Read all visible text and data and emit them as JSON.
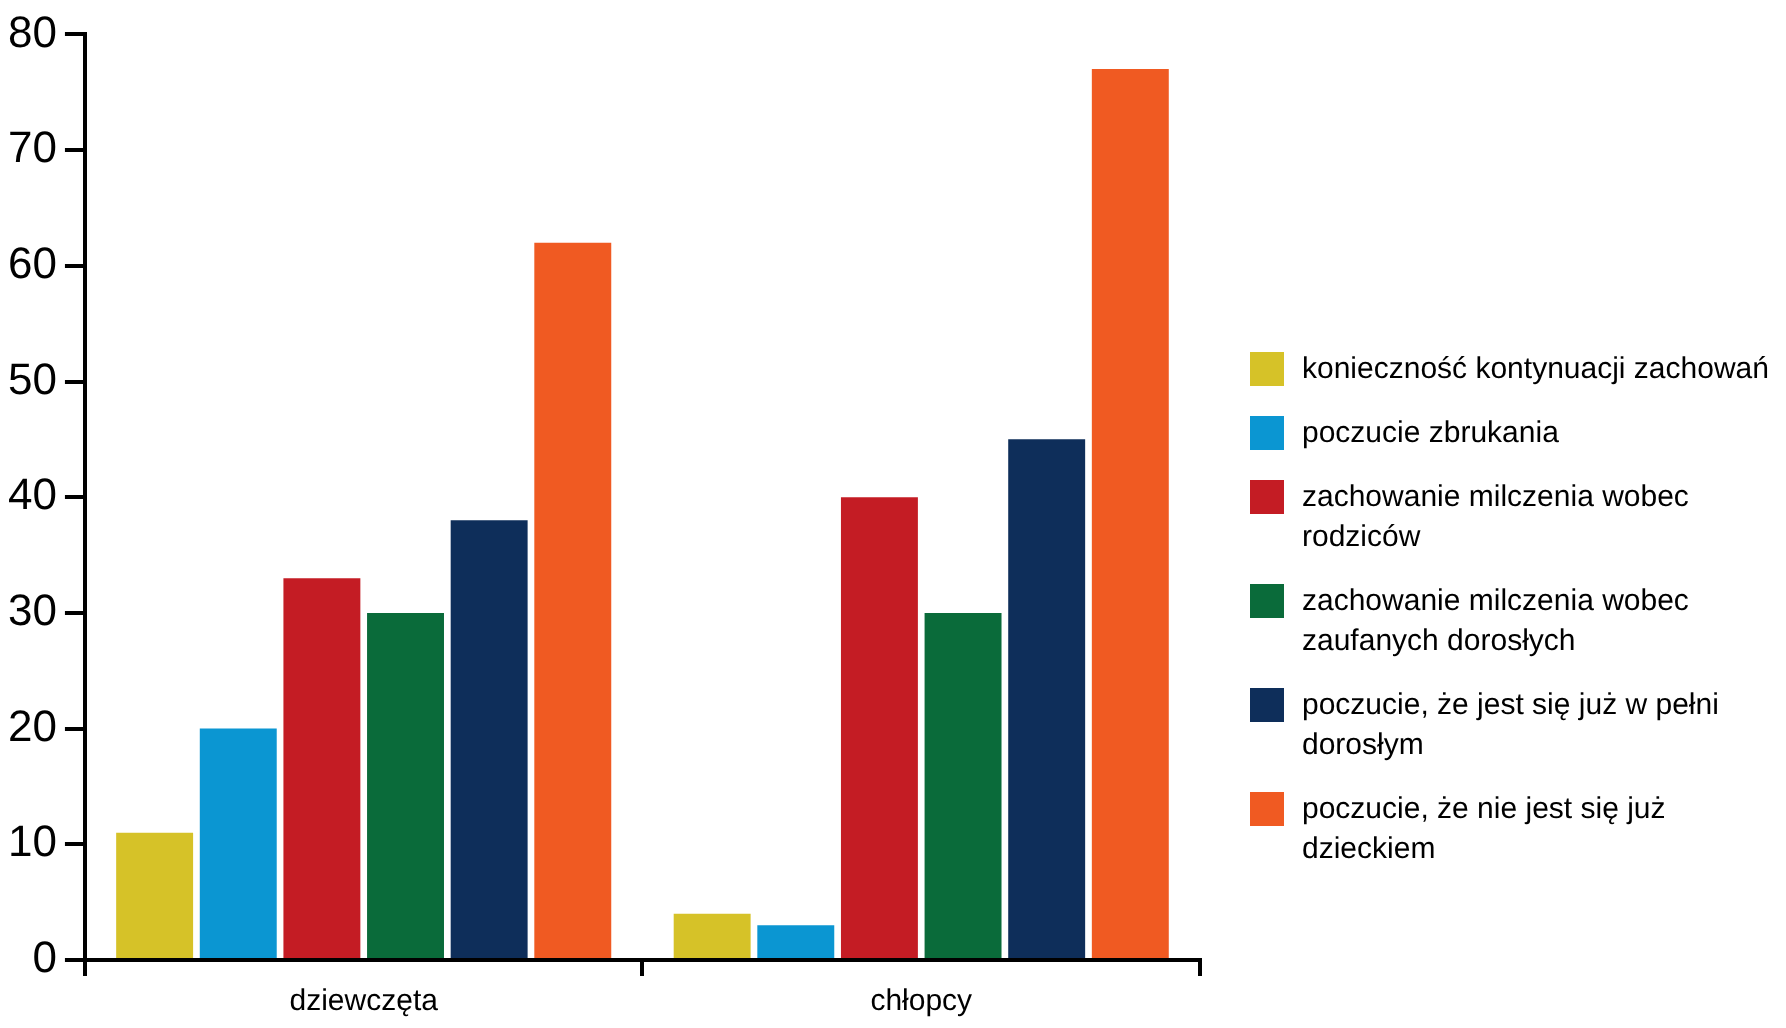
{
  "chart_data": {
    "type": "bar",
    "categories": [
      "dziewczęta",
      "chłopcy"
    ],
    "series": [
      {
        "name": "konieczność kontynuacji zachowań",
        "color": "#d6c228",
        "values": [
          11,
          4
        ]
      },
      {
        "name": "poczucie zbrukania",
        "color": "#0b96d2",
        "values": [
          20,
          3
        ]
      },
      {
        "name": "zachowanie milczenia wobec rodziców",
        "color": "#c41c24",
        "values": [
          33,
          40
        ]
      },
      {
        "name": "zachowanie milczenia wobec zaufanych dorosłych",
        "color": "#0a6b3a",
        "values": [
          30,
          30
        ]
      },
      {
        "name": "poczucie, że jest się już w pełni dorosłym",
        "color": "#0e2e5a",
        "values": [
          38,
          45
        ]
      },
      {
        "name": "poczucie, że nie jest się już dzieckiem",
        "color": "#f05a22",
        "values": [
          62,
          77
        ]
      }
    ],
    "ylim": [
      0,
      80
    ],
    "yticks": [
      0,
      10,
      20,
      30,
      40,
      50,
      60,
      70,
      80
    ],
    "legend": "right"
  }
}
